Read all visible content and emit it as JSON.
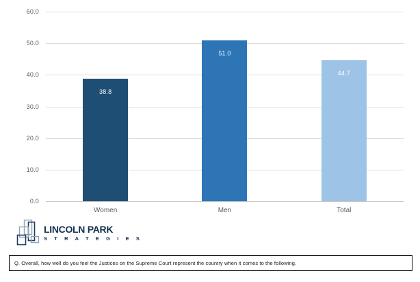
{
  "chart_data": {
    "type": "bar",
    "categories": [
      "Women",
      "Men",
      "Total"
    ],
    "values": [
      38.8,
      51.0,
      44.7
    ],
    "value_labels": [
      "38.8",
      "51.0",
      "44.7"
    ],
    "bar_colors": [
      "#1f4e74",
      "#2e75b6",
      "#9dc3e6"
    ],
    "title": "",
    "xlabel": "",
    "ylabel": "",
    "ylim": [
      0,
      60
    ],
    "ytick_labels": [
      "60.0",
      "50.0",
      "40.0",
      "30.0",
      "20.0",
      "10.0",
      "0.0"
    ],
    "grid": true,
    "legend": false,
    "value_label_position": "inside-top",
    "value_label_color": "#ffffff"
  },
  "logo": {
    "name": "Lincoln Park Strategies",
    "line1": "LINCOLN PARK",
    "line2": "S T R A T E G I E S",
    "navy": "#14304f",
    "light_blue": "#8ea3b8"
  },
  "footnote": {
    "text": "Q. Overall, how well do you feel the Justices on the Supreme Court represent the country when it comes to the following."
  },
  "colors": {
    "background": "#ffffff",
    "gridline": "#dcdcdc",
    "axis_line": "#c8c8c8",
    "tick_label": "#595959"
  }
}
